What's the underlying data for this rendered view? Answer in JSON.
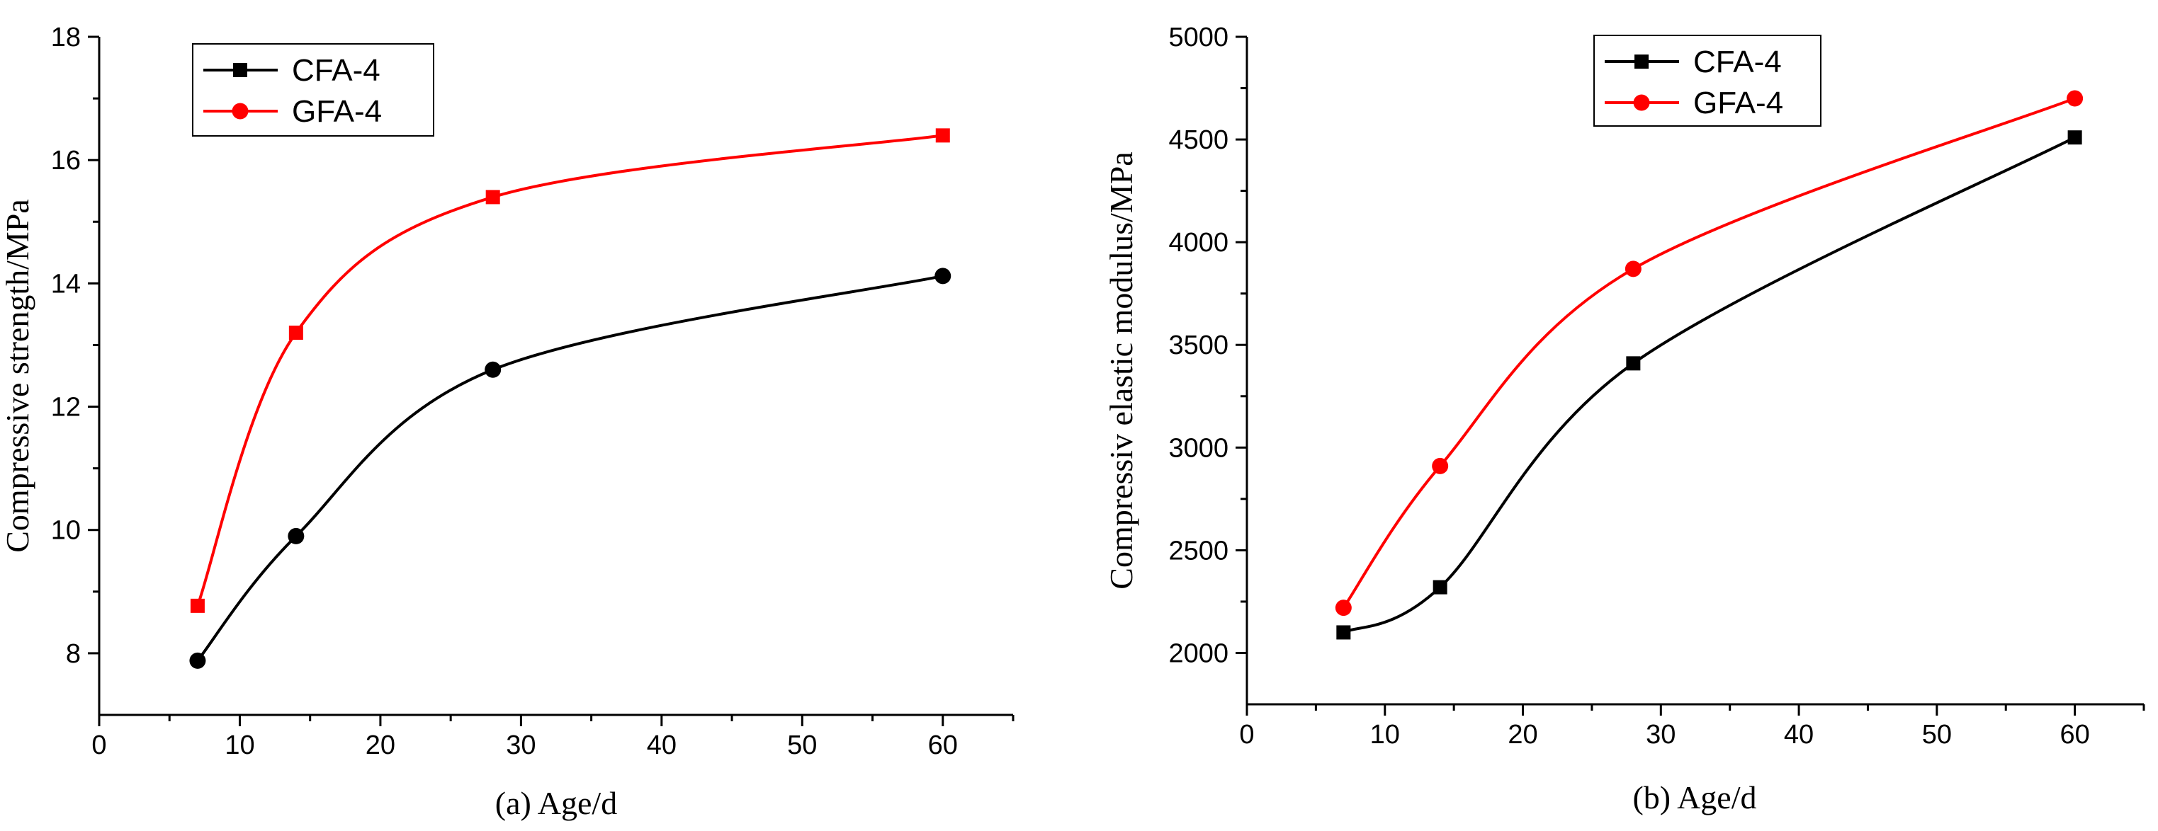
{
  "chart_data": [
    {
      "type": "line",
      "title": "",
      "xlabel": "(a) Age/d",
      "ylabel": "Compressive strength/MPa",
      "xlim": [
        0,
        65
      ],
      "ylim": [
        7,
        18
      ],
      "xticks": [
        0,
        10,
        20,
        30,
        40,
        50,
        60
      ],
      "yticks": [
        8,
        10,
        12,
        14,
        16,
        18
      ],
      "grid": false,
      "legend_position": "top-left",
      "series": [
        {
          "name": "CFA-4",
          "color": "#000000",
          "legend_marker": "square",
          "marker": "circle",
          "x": [
            7,
            14,
            28,
            60
          ],
          "y": [
            7.88,
            9.9,
            12.6,
            14.12
          ]
        },
        {
          "name": "GFA-4",
          "color": "#ff0000",
          "legend_marker": "circle",
          "marker": "square",
          "x": [
            7,
            14,
            28,
            60
          ],
          "y": [
            8.77,
            13.2,
            15.4,
            16.4
          ]
        }
      ]
    },
    {
      "type": "line",
      "title": "",
      "xlabel": "(b)  Age/d",
      "ylabel": "Compressiv elastic modulus/MPa",
      "xlim": [
        0,
        65
      ],
      "ylim": [
        1750,
        5000
      ],
      "xticks": [
        0,
        10,
        20,
        30,
        40,
        50,
        60
      ],
      "yticks": [
        2000,
        2500,
        3000,
        3500,
        4000,
        4500,
        5000
      ],
      "grid": false,
      "legend_position": "top-center",
      "series": [
        {
          "name": "CFA-4",
          "color": "#000000",
          "legend_marker": "square",
          "marker": "square",
          "x": [
            7,
            14,
            28,
            60
          ],
          "y": [
            2100,
            2320,
            3410,
            4510
          ]
        },
        {
          "name": "GFA-4",
          "color": "#ff0000",
          "legend_marker": "circle",
          "marker": "circle",
          "x": [
            7,
            14,
            28,
            60
          ],
          "y": [
            2220,
            2910,
            3870,
            4700
          ]
        }
      ]
    }
  ]
}
